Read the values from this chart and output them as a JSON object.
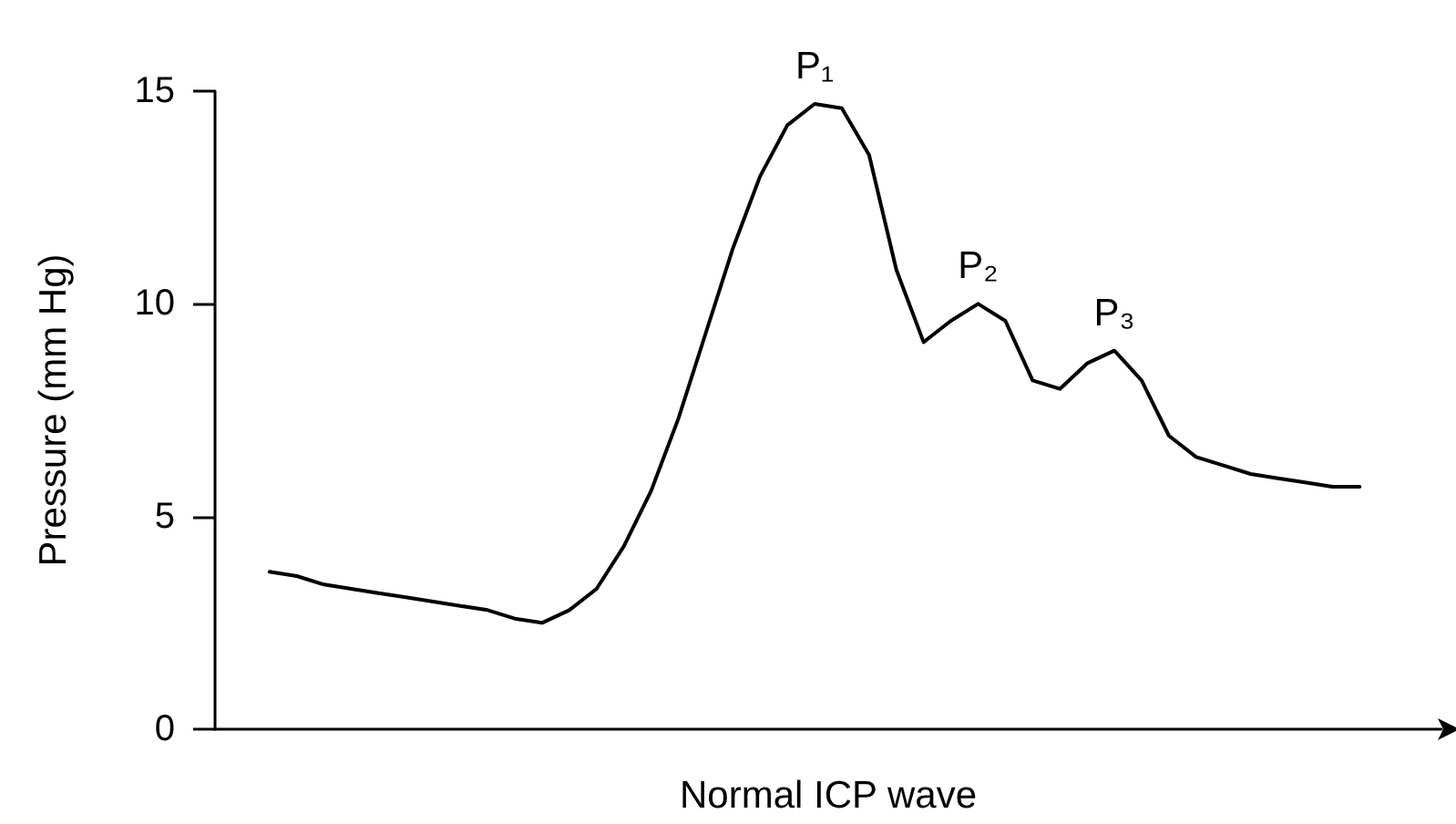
{
  "chart_data": {
    "type": "line",
    "xlabel": "Normal ICP wave",
    "ylabel": "Pressure (mm Hg)",
    "categories": [
      null,
      null,
      null,
      null,
      null,
      null,
      null,
      null,
      null,
      null,
      null,
      null,
      null,
      null,
      null,
      null,
      null,
      null,
      null,
      null,
      null,
      null,
      null,
      null,
      null,
      null,
      null,
      null,
      null,
      null,
      null,
      null,
      null,
      null,
      null,
      null,
      null,
      null,
      null,
      null,
      null,
      null,
      null,
      null,
      null,
      null
    ],
    "series": [
      {
        "color": "#000000",
        "values": [
          null,
          null,
          3.7,
          3.6,
          3.4,
          3.3,
          3.2,
          3.1,
          3.0,
          2.9,
          2.8,
          2.6,
          2.5,
          2.8,
          3.3,
          4.3,
          5.6,
          7.3,
          9.3,
          11.3,
          13.0,
          14.2,
          14.7,
          14.6,
          13.5,
          10.8,
          9.1,
          9.6,
          10.0,
          9.6,
          8.2,
          8.0,
          8.6,
          8.9,
          8.2,
          6.9,
          6.4,
          6.2,
          6.0,
          5.9,
          5.8,
          5.7,
          5.7,
          null,
          null,
          null
        ]
      }
    ],
    "annotations": [
      {
        "text": "P₁",
        "y": 14.7
      },
      {
        "text": "P₂",
        "y": 10.0
      },
      {
        "text": "P₃",
        "y": 8.9
      }
    ],
    "ylim": [
      0,
      15
    ],
    "yticks": [
      0,
      5,
      10,
      15
    ],
    "grid": false,
    "marker": "none",
    "line_style": "solid"
  }
}
